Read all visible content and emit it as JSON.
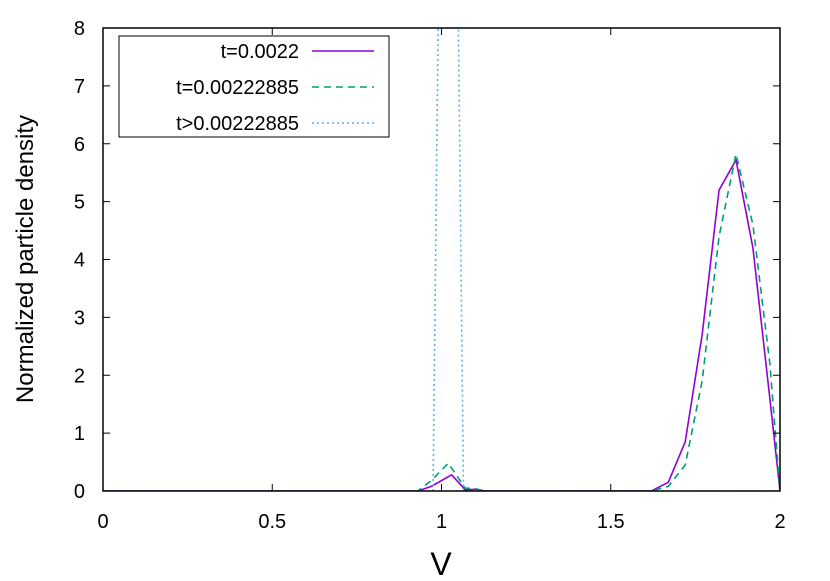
{
  "chart_data": {
    "type": "line",
    "title": "",
    "xlabel": "V",
    "ylabel": "Normalized particle density",
    "xlim": [
      0,
      2
    ],
    "ylim": [
      0,
      8
    ],
    "x_ticks": [
      "0",
      "0.5",
      "1",
      "1.5",
      "2"
    ],
    "y_ticks": [
      "0",
      "1",
      "2",
      "3",
      "4",
      "5",
      "6",
      "7",
      "8"
    ],
    "grid": false,
    "legend_position": "top-left",
    "series": [
      {
        "name": "t=0.0022",
        "color": "#9400d3",
        "dash": "solid",
        "x": [
          0.0,
          0.93,
          0.97,
          1.03,
          1.07,
          1.1,
          1.13,
          1.62,
          1.67,
          1.72,
          1.77,
          1.82,
          1.87,
          1.92,
          1.97,
          2.0
        ],
        "y": [
          0.0,
          0.0,
          0.08,
          0.28,
          0.02,
          0.03,
          0.0,
          0.0,
          0.15,
          0.85,
          2.7,
          5.2,
          5.72,
          4.2,
          1.6,
          0.0
        ]
      },
      {
        "name": "t=0.00222885",
        "color": "#009e73",
        "dash": "dashed",
        "x": [
          0.0,
          0.93,
          0.97,
          1.02,
          1.07,
          1.1,
          1.13,
          1.62,
          1.67,
          1.72,
          1.77,
          1.82,
          1.87,
          1.92,
          1.97,
          2.0
        ],
        "y": [
          0.0,
          0.0,
          0.18,
          0.48,
          0.05,
          0.04,
          0.0,
          0.0,
          0.08,
          0.45,
          1.9,
          4.4,
          5.82,
          4.6,
          2.2,
          0.0
        ]
      },
      {
        "name": "t>0.00222885",
        "color": "#56b4e9",
        "dash": "dotted",
        "x": [
          0.0,
          0.975,
          0.99,
          1.02,
          1.05,
          1.065,
          2.0
        ],
        "y": [
          0.0,
          0.0,
          8.0,
          8.0,
          8.0,
          0.0,
          0.0
        ]
      }
    ]
  }
}
